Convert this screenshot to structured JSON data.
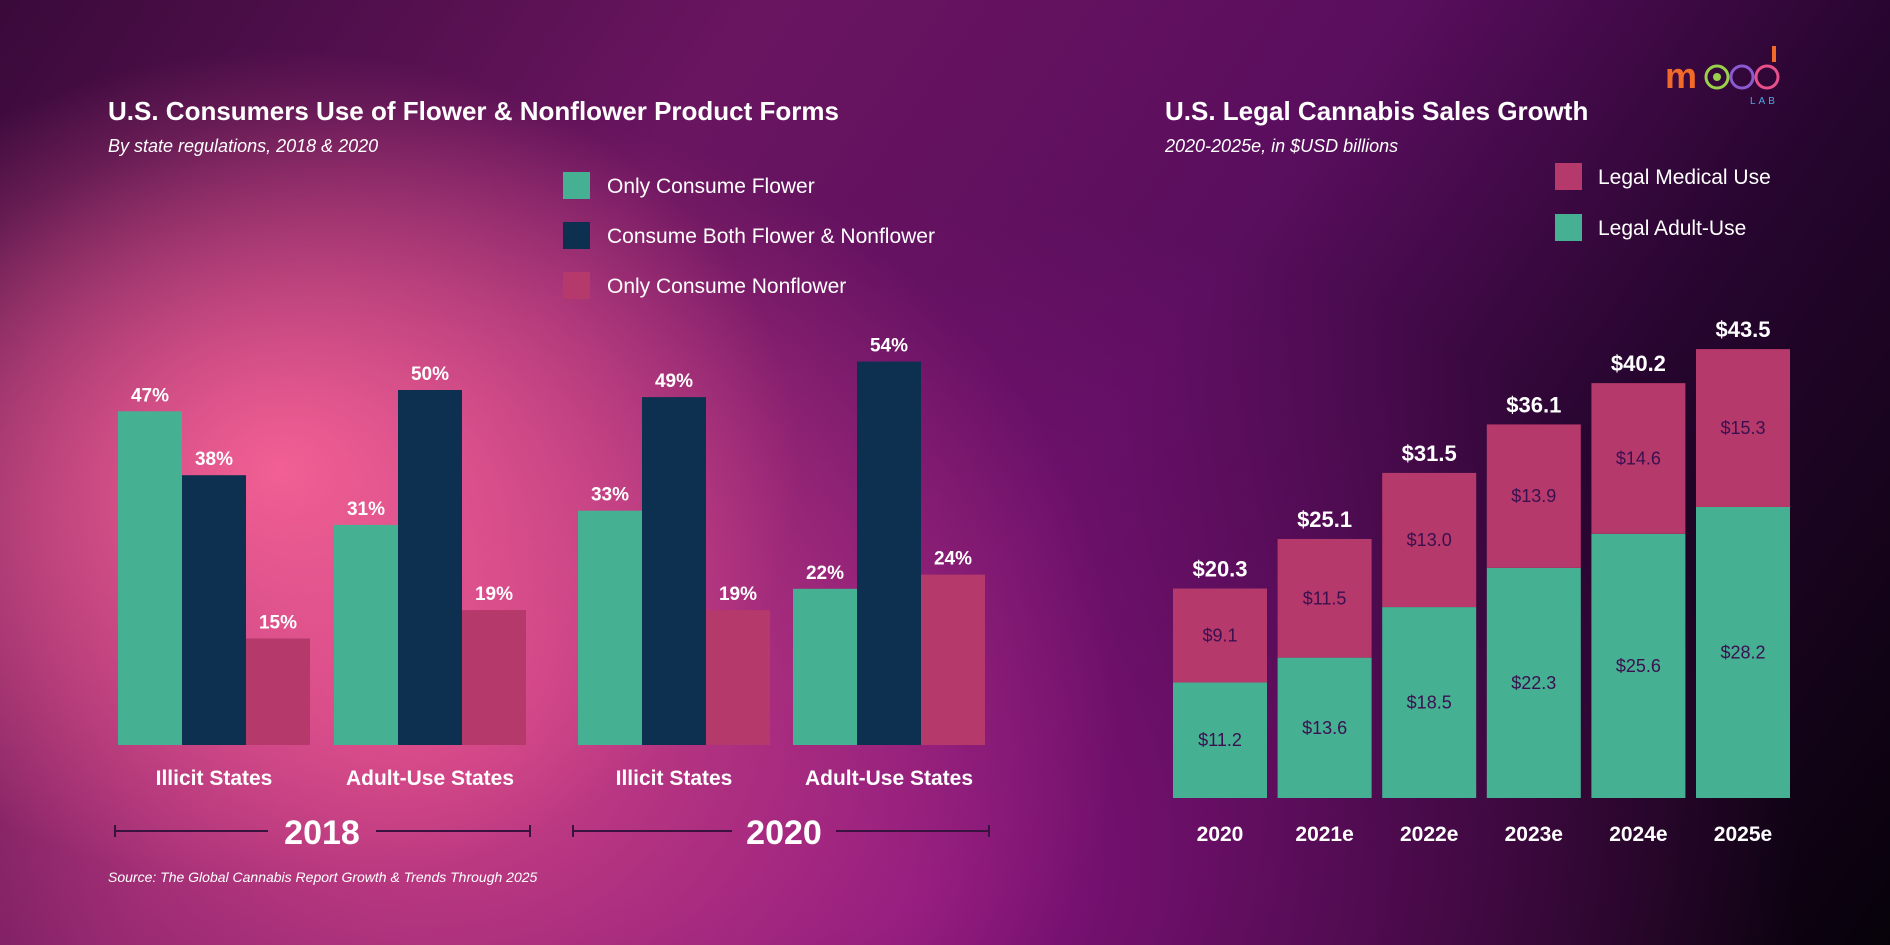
{
  "logo": {
    "text": "mood",
    "sub": "LAB"
  },
  "colors": {
    "flower": "#46b093",
    "both": "#0d3050",
    "nonflower": "#b5396a",
    "medical": "#b5396a",
    "adult": "#46b093"
  },
  "chart_data": [
    {
      "type": "bar",
      "title": "U.S. Consumers Use of Flower & Nonflower Product Forms",
      "subtitle": "By state regulations, 2018 & 2020",
      "categories": [
        "Illicit States",
        "Adult-Use States",
        "Illicit States",
        "Adult-Use States"
      ],
      "groups": [
        "2018",
        "2018",
        "2020",
        "2020"
      ],
      "year_labels": [
        "2018",
        "2020"
      ],
      "series": [
        {
          "name": "Only Consume Flower",
          "values": [
            47,
            31,
            33,
            22
          ]
        },
        {
          "name": "Consume Both Flower & Nonflower",
          "values": [
            38,
            50,
            49,
            54
          ]
        },
        {
          "name": "Only Consume Nonflower",
          "values": [
            15,
            19,
            19,
            24
          ]
        }
      ],
      "unit": "%",
      "ylim": [
        0,
        60
      ],
      "legend": "top-right",
      "source": "Source: The Global Cannabis Report Growth & Trends Through 2025"
    },
    {
      "type": "bar",
      "stacked": true,
      "title": "U.S. Legal Cannabis Sales Growth",
      "subtitle": "2020-2025e, in $USD billions",
      "categories": [
        "2020",
        "2021e",
        "2022e",
        "2023e",
        "2024e",
        "2025e"
      ],
      "series": [
        {
          "name": "Legal Medical Use",
          "values": [
            9.1,
            11.5,
            13.0,
            13.9,
            14.6,
            15.3
          ],
          "labels": [
            "$9.1",
            "$11.5",
            "$13.0",
            "$13.9",
            "$14.6",
            "$15.3"
          ]
        },
        {
          "name": "Legal Adult-Use",
          "values": [
            11.2,
            13.6,
            18.5,
            22.3,
            25.6,
            28.2
          ],
          "labels": [
            "$11.2",
            "$13.6",
            "$18.5",
            "$22.3",
            "$25.6",
            "$28.2"
          ]
        }
      ],
      "totals": [
        "$20.3",
        "$25.1",
        "$31.5",
        "$36.1",
        "$40.2",
        "$43.5"
      ],
      "legend": "top-right"
    }
  ]
}
